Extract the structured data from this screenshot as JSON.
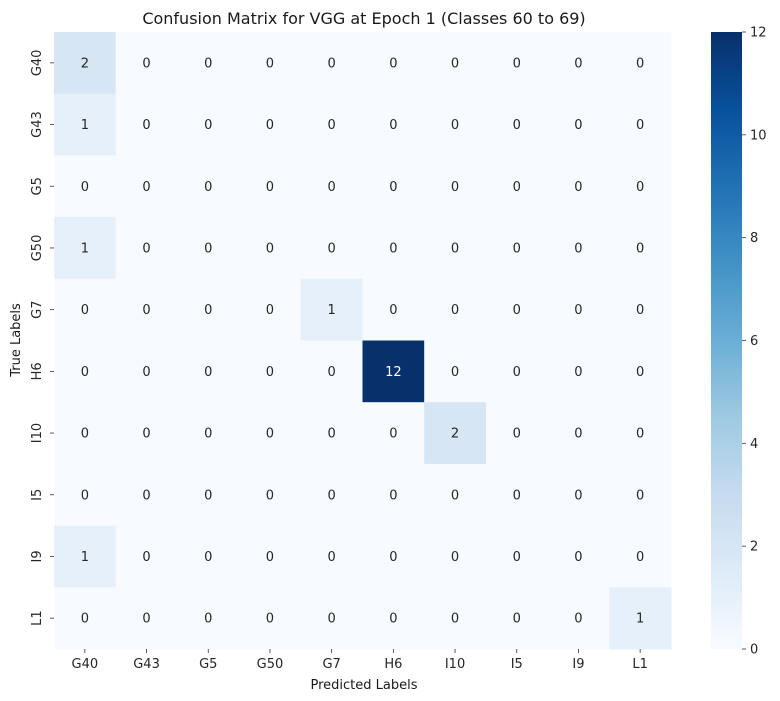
{
  "chart_data": {
    "type": "heatmap",
    "title": "Confusion Matrix for VGG at Epoch 1 (Classes 60 to 69)",
    "xlabel": "Predicted Labels",
    "ylabel": "True Labels",
    "x_categories": [
      "G40",
      "G43",
      "G5",
      "G50",
      "G7",
      "H6",
      "I10",
      "I5",
      "I9",
      "L1"
    ],
    "y_categories": [
      "G40",
      "G43",
      "G5",
      "G50",
      "G7",
      "H6",
      "I10",
      "I5",
      "I9",
      "L1"
    ],
    "values": [
      [
        2,
        0,
        0,
        0,
        0,
        0,
        0,
        0,
        0,
        0
      ],
      [
        1,
        0,
        0,
        0,
        0,
        0,
        0,
        0,
        0,
        0
      ],
      [
        0,
        0,
        0,
        0,
        0,
        0,
        0,
        0,
        0,
        0
      ],
      [
        1,
        0,
        0,
        0,
        0,
        0,
        0,
        0,
        0,
        0
      ],
      [
        0,
        0,
        0,
        0,
        1,
        0,
        0,
        0,
        0,
        0
      ],
      [
        0,
        0,
        0,
        0,
        0,
        12,
        0,
        0,
        0,
        0
      ],
      [
        0,
        0,
        0,
        0,
        0,
        0,
        2,
        0,
        0,
        0
      ],
      [
        0,
        0,
        0,
        0,
        0,
        0,
        0,
        0,
        0,
        0
      ],
      [
        1,
        0,
        0,
        0,
        0,
        0,
        0,
        0,
        0,
        0
      ],
      [
        0,
        0,
        0,
        0,
        0,
        0,
        0,
        0,
        0,
        1
      ]
    ],
    "colorbar": {
      "range": [
        0,
        12
      ],
      "ticks": [
        "0",
        "2",
        "4",
        "6",
        "8",
        "10",
        "12"
      ],
      "colormap": "Blues",
      "low_color": "#f7fbff",
      "high_color": "#08306b"
    }
  }
}
